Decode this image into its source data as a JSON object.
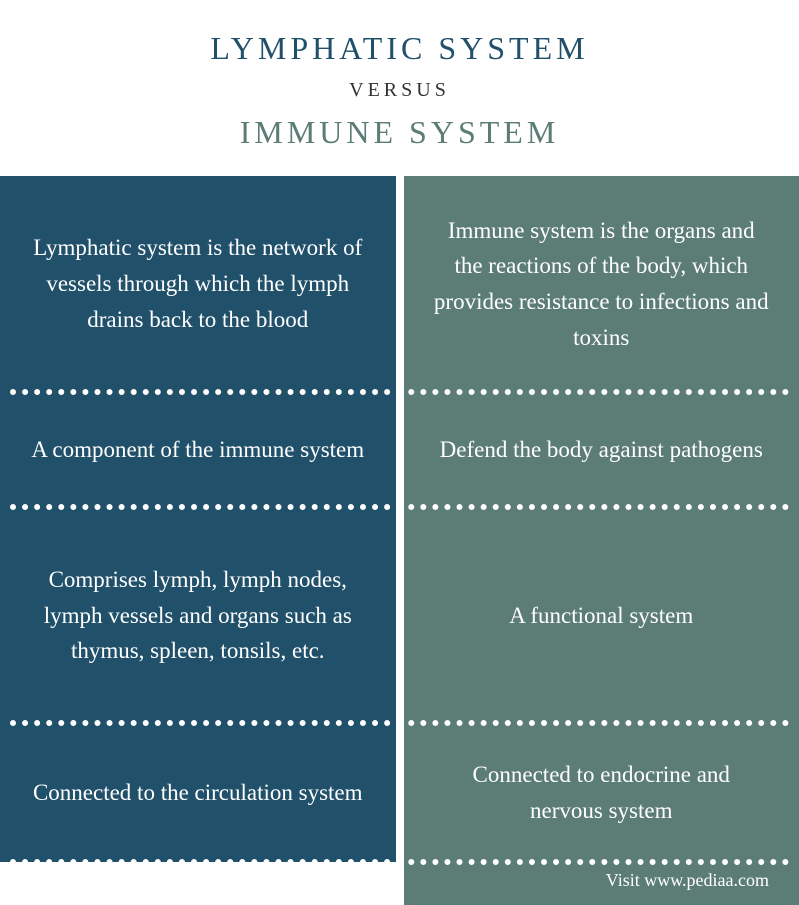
{
  "header": {
    "left_title": "LYMPHATIC SYSTEM",
    "versus": "VERSUS",
    "right_title": "IMMUNE SYSTEM",
    "left_color": "#21506a",
    "right_color": "#5c7c76"
  },
  "colors": {
    "left_bg": "#21506a",
    "right_bg": "#5c7c76",
    "gap_bg": "#ffffff",
    "divider": "#ffffff"
  },
  "rows": [
    {
      "left": "Lymphatic system is the network of vessels through which the lymph drains back to the blood",
      "right": "Immune system is the organs and the reactions of the body, which provides resistance to infections and toxins"
    },
    {
      "left": "A component of the immune system",
      "right": "Defend the body against pathogens"
    },
    {
      "left": "Comprises lymph, lymph nodes, lymph vessels and organs such as thymus, spleen, tonsils, etc.",
      "right": "A functional system"
    },
    {
      "left": "Connected to the circulation system",
      "right": "Connected to endocrine and nervous system"
    }
  ],
  "footer": {
    "text": "Visit www.pediaa.com"
  }
}
